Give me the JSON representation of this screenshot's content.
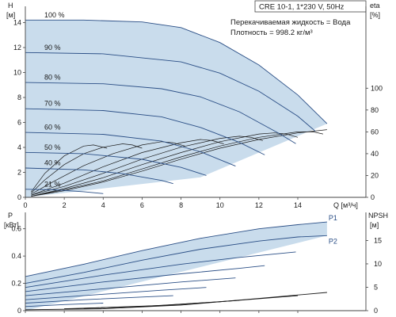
{
  "header": {
    "model": "CRE 10-1, 1*230 V, 50Hz",
    "liquid": "Перекачиваемая жидкость = Вода",
    "density": "Плотность = 998.2 кг/м³"
  },
  "colors": {
    "area_fill": "#c9dcec",
    "curve": "#2b4f86",
    "eta_curve": "#1a1a1a",
    "frame": "#444444"
  },
  "chart_data": [
    {
      "type": "area",
      "name": "qh-panel",
      "xlabel": "Q [м³/ч]",
      "ylabel_left": "H",
      "ylabel_left_unit": "[м]",
      "ylabel_right": "eta",
      "ylabel_right_unit": "[%]",
      "xlim": [
        0,
        17.5
      ],
      "ylim_left": [
        0,
        15.3
      ],
      "ylim_right": [
        0,
        175
      ],
      "x_ticks": [
        "0",
        "2",
        "4",
        "6",
        "8",
        "10",
        "12",
        "14"
      ],
      "y_ticks_left": [
        "0",
        "2",
        "4",
        "6",
        "8",
        "10",
        "12",
        "14"
      ],
      "y_ticks_right": [
        "0",
        "20",
        "40",
        "60",
        "80",
        "100"
      ],
      "grid": false,
      "envelope": [
        [
          0,
          14.2
        ],
        [
          3,
          14.2
        ],
        [
          6,
          14.05
        ],
        [
          8,
          13.6
        ],
        [
          10,
          12.4
        ],
        [
          12,
          10.6
        ],
        [
          14,
          8.2
        ],
        [
          15.5,
          5.9
        ],
        [
          15.5,
          5.9
        ],
        [
          9,
          1.6
        ],
        [
          0,
          0
        ]
      ],
      "speed_curves": [
        {
          "label": "100 %",
          "pts": [
            [
              0,
              14.2
            ],
            [
              3,
              14.2
            ],
            [
              6,
              14.05
            ],
            [
              8,
              13.6
            ],
            [
              10,
              12.4
            ],
            [
              12,
              10.6
            ],
            [
              14,
              8.2
            ],
            [
              15.5,
              5.9
            ]
          ]
        },
        {
          "label": "90 %",
          "pts": [
            [
              0,
              11.6
            ],
            [
              4,
              11.5
            ],
            [
              8,
              10.85
            ],
            [
              10,
              9.95
            ],
            [
              12,
              8.5
            ],
            [
              14,
              6.5
            ],
            [
              14.9,
              5.3
            ]
          ]
        },
        {
          "label": "80 %",
          "pts": [
            [
              0,
              9.2
            ],
            [
              4,
              9.1
            ],
            [
              7,
              8.7
            ],
            [
              9,
              8.05
            ],
            [
              11,
              6.85
            ],
            [
              13,
              5.15
            ],
            [
              13.9,
              4.3
            ]
          ]
        },
        {
          "label": "70 %",
          "pts": [
            [
              0,
              7.1
            ],
            [
              4,
              6.95
            ],
            [
              7,
              6.45
            ],
            [
              9,
              5.6
            ],
            [
              11,
              4.4
            ],
            [
              12.3,
              3.4
            ]
          ]
        },
        {
          "label": "60 %",
          "pts": [
            [
              0,
              5.2
            ],
            [
              4,
              5.05
            ],
            [
              7,
              4.5
            ],
            [
              9,
              3.65
            ],
            [
              10.8,
              2.5
            ]
          ]
        },
        {
          "label": "50 %",
          "pts": [
            [
              0,
              3.6
            ],
            [
              3,
              3.5
            ],
            [
              6,
              3.05
            ],
            [
              8,
              2.4
            ],
            [
              9.3,
              1.75
            ]
          ]
        },
        {
          "label": "40 %",
          "pts": [
            [
              0,
              2.35
            ],
            [
              3,
              2.2
            ],
            [
              5,
              1.9
            ],
            [
              7,
              1.35
            ],
            [
              7.6,
              1.1
            ]
          ]
        },
        {
          "label": "21 %",
          "pts": [
            [
              0,
              0.65
            ],
            [
              1.5,
              0.6
            ],
            [
              3,
              0.45
            ],
            [
              4,
              0.3
            ]
          ]
        }
      ],
      "eta_curves": [
        {
          "pts": [
            [
              0.3,
              5
            ],
            [
              1,
              22
            ],
            [
              2,
              38
            ],
            [
              3,
              47
            ],
            [
              3.5,
              48
            ],
            [
              4.2,
              45
            ]
          ]
        },
        {
          "pts": [
            [
              0.3,
              4
            ],
            [
              1,
              16
            ],
            [
              2,
              30
            ],
            [
              3,
              40
            ],
            [
              4,
              46
            ],
            [
              5,
              49
            ],
            [
              5.5,
              48
            ],
            [
              6,
              45
            ]
          ]
        },
        {
          "pts": [
            [
              0.3,
              3
            ],
            [
              1.5,
              15
            ],
            [
              3,
              29
            ],
            [
              4.5,
              40
            ],
            [
              6,
              48
            ],
            [
              7,
              51
            ],
            [
              7.6,
              50
            ],
            [
              8.2,
              47
            ]
          ]
        },
        {
          "pts": [
            [
              0.3,
              2
            ],
            [
              2,
              13
            ],
            [
              4,
              28
            ],
            [
              6,
              41
            ],
            [
              8,
              50
            ],
            [
              9,
              53
            ],
            [
              9.6,
              52
            ],
            [
              10.2,
              49
            ]
          ]
        },
        {
          "pts": [
            [
              0.3,
              2
            ],
            [
              2,
              10
            ],
            [
              4,
              22
            ],
            [
              6,
              35
            ],
            [
              8,
              46
            ],
            [
              10,
              54
            ],
            [
              11,
              56
            ],
            [
              11.6,
              55
            ],
            [
              12.2,
              52
            ]
          ]
        },
        {
          "pts": [
            [
              0.3,
              1
            ],
            [
              2,
              8
            ],
            [
              4,
              18
            ],
            [
              6,
              30
            ],
            [
              8,
              41
            ],
            [
              10,
              51
            ],
            [
              12,
              58
            ],
            [
              12.8,
              59
            ],
            [
              13.4,
              58
            ],
            [
              14,
              55
            ]
          ]
        },
        {
          "pts": [
            [
              0.3,
              1
            ],
            [
              2,
              7
            ],
            [
              4,
              15
            ],
            [
              6,
              26
            ],
            [
              8,
              37
            ],
            [
              10,
              47
            ],
            [
              12,
              55
            ],
            [
              14,
              60
            ],
            [
              14.8,
              60
            ],
            [
              15.3,
              58
            ]
          ]
        },
        {
          "pts": [
            [
              0.3,
              1
            ],
            [
              2,
              6
            ],
            [
              4,
              14
            ],
            [
              6,
              24
            ],
            [
              8,
              35
            ],
            [
              10,
              45
            ],
            [
              12,
              53
            ],
            [
              14,
              59
            ],
            [
              15.5,
              62
            ]
          ]
        }
      ]
    },
    {
      "type": "area",
      "name": "power-npsh-panel",
      "xlabel": "",
      "ylabel_left": "P",
      "ylabel_left_unit": "[кВт]",
      "ylabel_right": "NPSH",
      "ylabel_right_unit": "[м]",
      "xlim": [
        0,
        17.5
      ],
      "ylim_left": [
        0,
        0.72
      ],
      "ylim_right": [
        0,
        21
      ],
      "y_ticks_left": [
        "0",
        "0.2",
        "0.4",
        "0.6"
      ],
      "y_ticks_right": [
        "0",
        "5",
        "10",
        "15"
      ],
      "grid": false,
      "envelope": [
        [
          0,
          0.25
        ],
        [
          3,
          0.34
        ],
        [
          6,
          0.44
        ],
        [
          9,
          0.53
        ],
        [
          12,
          0.6
        ],
        [
          14,
          0.63
        ],
        [
          15.5,
          0.65
        ],
        [
          15.5,
          0.55
        ],
        [
          0,
          0
        ]
      ],
      "series": [
        {
          "name": "P1",
          "pts": [
            [
              0,
              0.25
            ],
            [
              3,
              0.34
            ],
            [
              6,
              0.44
            ],
            [
              9,
              0.53
            ],
            [
              12,
              0.6
            ],
            [
              14,
              0.63
            ],
            [
              15.5,
              0.65
            ]
          ]
        },
        {
          "name": "P2",
          "pts": [
            [
              0,
              0.2
            ],
            [
              3,
              0.28
            ],
            [
              6,
              0.37
            ],
            [
              9,
              0.45
            ],
            [
              12,
              0.51
            ],
            [
              14,
              0.54
            ],
            [
              15.5,
              0.55
            ]
          ]
        },
        {
          "name": "",
          "pts": [
            [
              0,
              0.17
            ],
            [
              4,
              0.26
            ],
            [
              8,
              0.34
            ],
            [
              11,
              0.39
            ],
            [
              13.9,
              0.43
            ]
          ]
        },
        {
          "name": "",
          "pts": [
            [
              0,
              0.14
            ],
            [
              4,
              0.21
            ],
            [
              8,
              0.27
            ],
            [
              11,
              0.31
            ],
            [
              12.3,
              0.33
            ]
          ]
        },
        {
          "name": "",
          "pts": [
            [
              0,
              0.11
            ],
            [
              4,
              0.16
            ],
            [
              8,
              0.21
            ],
            [
              10.8,
              0.24
            ]
          ]
        },
        {
          "name": "",
          "pts": [
            [
              0,
              0.08
            ],
            [
              4,
              0.12
            ],
            [
              7,
              0.15
            ],
            [
              9.3,
              0.17
            ]
          ]
        },
        {
          "name": "",
          "pts": [
            [
              0,
              0.055
            ],
            [
              3,
              0.08
            ],
            [
              6,
              0.1
            ],
            [
              7.6,
              0.11
            ]
          ]
        },
        {
          "name": "",
          "pts": [
            [
              0,
              0.03
            ],
            [
              2,
              0.045
            ],
            [
              4,
              0.055
            ]
          ]
        }
      ],
      "npsh_curves": [
        {
          "pts": [
            [
              0,
              0.2
            ],
            [
              4,
              0.4
            ],
            [
              8,
              1.2
            ],
            [
              12,
              2.6
            ],
            [
              15.5,
              3.9
            ]
          ]
        },
        {
          "pts": [
            [
              2,
              0.4
            ],
            [
              6,
              0.9
            ],
            [
              10,
              1.9
            ],
            [
              14,
              3.2
            ]
          ]
        },
        {
          "pts": [
            [
              3,
              0.5
            ],
            [
              7,
              1.1
            ],
            [
              11,
              2.2
            ]
          ]
        }
      ]
    }
  ]
}
